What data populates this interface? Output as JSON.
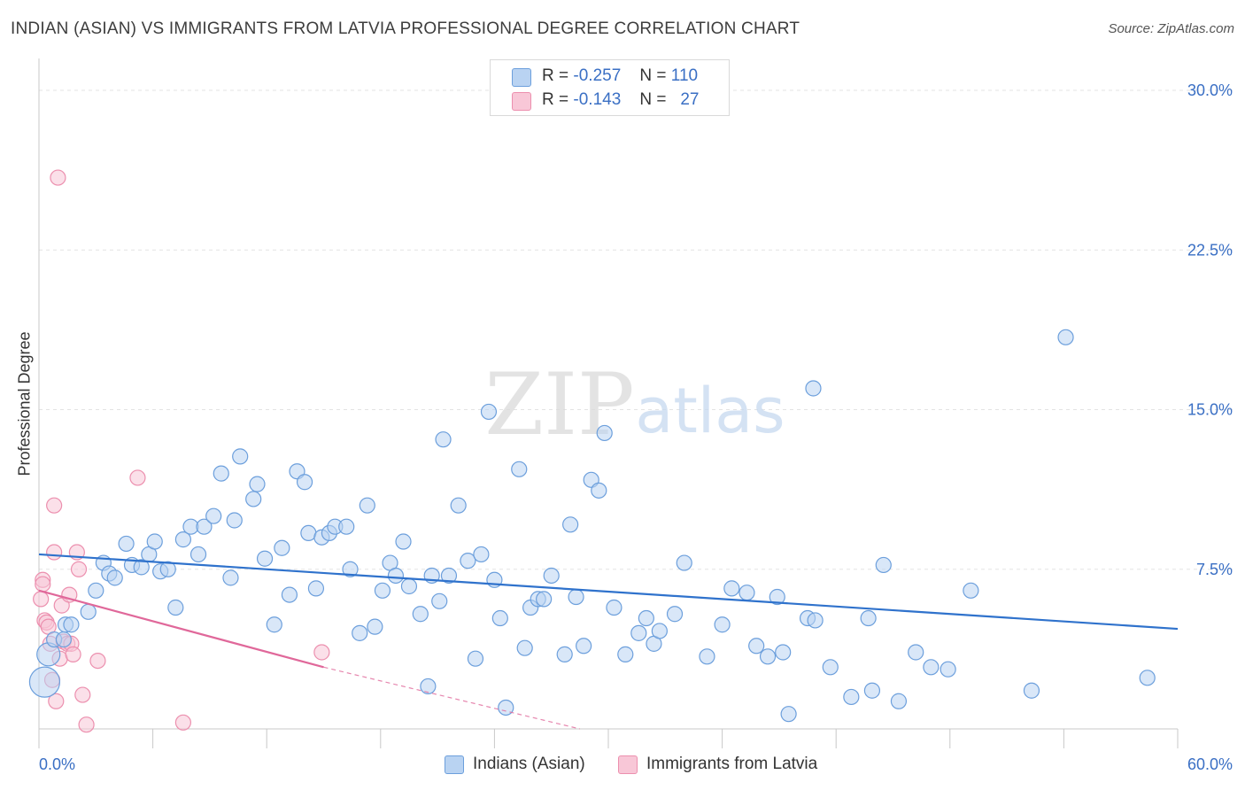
{
  "header": {
    "title": "INDIAN (ASIAN) VS IMMIGRANTS FROM LATVIA PROFESSIONAL DEGREE CORRELATION CHART",
    "source": "Source: ZipAtlas.com"
  },
  "legend": {
    "rows": [
      {
        "r_label": "R =",
        "r_value": "-0.257",
        "n_label": "N =",
        "n_value": "110"
      },
      {
        "r_label": "R =",
        "r_value": "-0.143",
        "n_label": "N =",
        "n_value": "27"
      }
    ]
  },
  "watermark": {
    "zip": "ZIP",
    "atlas": "atlas"
  },
  "colors": {
    "blue_fill": "#b9d3f2",
    "blue_stroke": "#6c9fdc",
    "blue_line": "#2f72cc",
    "pink_fill": "#f8c7d7",
    "pink_stroke": "#ec8fae",
    "pink_line": "#e0689a",
    "tick_label": "#3a6fc4",
    "grid": "#e3e3e3"
  },
  "chart_data": {
    "type": "scatter",
    "title": "INDIAN (ASIAN) VS IMMIGRANTS FROM LATVIA PROFESSIONAL DEGREE CORRELATION CHART",
    "xlabel": "",
    "ylabel": "Professional Degree",
    "xlim": [
      0,
      60
    ],
    "ylim": [
      0,
      31.5
    ],
    "x_tick_labels": [
      "0.0%",
      "60.0%"
    ],
    "y_ticks": [
      {
        "value": 7.5,
        "label": "7.5%"
      },
      {
        "value": 15.0,
        "label": "15.0%"
      },
      {
        "value": 22.5,
        "label": "22.5%"
      },
      {
        "value": 30.0,
        "label": "30.0%"
      }
    ],
    "grid": true,
    "legend_position": "top-center",
    "series": [
      {
        "name": "Indians (Asian)",
        "color": "#6c9fdc",
        "trend": {
          "x": [
            0,
            60
          ],
          "y": [
            8.2,
            4.7
          ]
        },
        "points": [
          [
            0.3,
            2.2
          ],
          [
            0.5,
            3.5
          ],
          [
            0.8,
            4.2
          ],
          [
            1.3,
            4.2
          ],
          [
            1.4,
            4.9
          ],
          [
            1.7,
            4.9
          ],
          [
            2.6,
            5.5
          ],
          [
            3.0,
            6.5
          ],
          [
            3.4,
            7.8
          ],
          [
            3.7,
            7.3
          ],
          [
            4.0,
            7.1
          ],
          [
            4.6,
            8.7
          ],
          [
            4.9,
            7.7
          ],
          [
            5.4,
            7.6
          ],
          [
            5.8,
            8.2
          ],
          [
            6.1,
            8.8
          ],
          [
            6.4,
            7.4
          ],
          [
            6.8,
            7.5
          ],
          [
            7.2,
            5.7
          ],
          [
            7.6,
            8.9
          ],
          [
            8.0,
            9.5
          ],
          [
            8.4,
            8.2
          ],
          [
            8.7,
            9.5
          ],
          [
            9.2,
            10.0
          ],
          [
            9.6,
            12.0
          ],
          [
            10.1,
            7.1
          ],
          [
            10.3,
            9.8
          ],
          [
            10.6,
            12.8
          ],
          [
            11.3,
            10.8
          ],
          [
            11.5,
            11.5
          ],
          [
            11.9,
            8.0
          ],
          [
            12.4,
            4.9
          ],
          [
            12.8,
            8.5
          ],
          [
            13.2,
            6.3
          ],
          [
            13.6,
            12.1
          ],
          [
            14.0,
            11.6
          ],
          [
            14.2,
            9.2
          ],
          [
            14.6,
            6.6
          ],
          [
            14.9,
            9.0
          ],
          [
            15.3,
            9.2
          ],
          [
            15.6,
            9.5
          ],
          [
            16.2,
            9.5
          ],
          [
            16.4,
            7.5
          ],
          [
            16.9,
            4.5
          ],
          [
            17.3,
            10.5
          ],
          [
            17.7,
            4.8
          ],
          [
            18.1,
            6.5
          ],
          [
            18.5,
            7.8
          ],
          [
            18.8,
            7.2
          ],
          [
            19.2,
            8.8
          ],
          [
            19.5,
            6.7
          ],
          [
            20.1,
            5.4
          ],
          [
            20.5,
            2.0
          ],
          [
            20.7,
            7.2
          ],
          [
            21.1,
            6.0
          ],
          [
            21.3,
            13.6
          ],
          [
            21.6,
            7.2
          ],
          [
            22.1,
            10.5
          ],
          [
            22.6,
            7.9
          ],
          [
            23.0,
            3.3
          ],
          [
            23.3,
            8.2
          ],
          [
            23.7,
            14.9
          ],
          [
            24.0,
            7.0
          ],
          [
            24.3,
            5.2
          ],
          [
            24.6,
            1.0
          ],
          [
            25.3,
            12.2
          ],
          [
            25.6,
            3.8
          ],
          [
            25.9,
            5.7
          ],
          [
            26.3,
            6.1
          ],
          [
            26.6,
            6.1
          ],
          [
            27.0,
            7.2
          ],
          [
            27.7,
            3.5
          ],
          [
            28.0,
            9.6
          ],
          [
            28.3,
            6.2
          ],
          [
            28.7,
            3.9
          ],
          [
            29.1,
            11.7
          ],
          [
            29.5,
            11.2
          ],
          [
            29.8,
            13.9
          ],
          [
            30.3,
            5.7
          ],
          [
            30.9,
            3.5
          ],
          [
            31.6,
            4.5
          ],
          [
            32.0,
            5.2
          ],
          [
            32.4,
            4.0
          ],
          [
            32.7,
            4.6
          ],
          [
            33.5,
            5.4
          ],
          [
            34.0,
            7.8
          ],
          [
            35.2,
            3.4
          ],
          [
            36.0,
            4.9
          ],
          [
            36.5,
            6.6
          ],
          [
            37.3,
            6.4
          ],
          [
            37.8,
            3.9
          ],
          [
            38.4,
            3.4
          ],
          [
            38.9,
            6.2
          ],
          [
            39.2,
            3.6
          ],
          [
            39.5,
            0.7
          ],
          [
            40.5,
            5.2
          ],
          [
            40.9,
            5.1
          ],
          [
            40.8,
            16.0
          ],
          [
            41.7,
            2.9
          ],
          [
            42.8,
            1.5
          ],
          [
            43.7,
            5.2
          ],
          [
            43.9,
            1.8
          ],
          [
            44.5,
            7.7
          ],
          [
            45.3,
            1.3
          ],
          [
            46.2,
            3.6
          ],
          [
            47.0,
            2.9
          ],
          [
            47.9,
            2.8
          ],
          [
            49.1,
            6.5
          ],
          [
            52.3,
            1.8
          ],
          [
            54.1,
            18.4
          ],
          [
            58.4,
            2.4
          ]
        ]
      },
      {
        "name": "Immigrants from Latvia",
        "color": "#ec8fae",
        "trend": {
          "x": [
            0,
            15
          ],
          "y": [
            6.5,
            2.9
          ],
          "dashed_to": {
            "x": 28.5,
            "y": 0
          }
        },
        "points": [
          [
            0.1,
            6.1
          ],
          [
            0.2,
            7.0
          ],
          [
            0.2,
            6.8
          ],
          [
            0.3,
            5.1
          ],
          [
            0.4,
            5.0
          ],
          [
            0.5,
            4.8
          ],
          [
            0.6,
            4.0
          ],
          [
            0.7,
            2.3
          ],
          [
            0.8,
            8.3
          ],
          [
            0.8,
            10.5
          ],
          [
            0.9,
            1.3
          ],
          [
            1.0,
            25.9
          ],
          [
            1.1,
            3.3
          ],
          [
            1.2,
            5.8
          ],
          [
            1.3,
            4.1
          ],
          [
            1.5,
            4.0
          ],
          [
            1.6,
            6.3
          ],
          [
            1.7,
            4.0
          ],
          [
            1.8,
            3.5
          ],
          [
            2.0,
            8.3
          ],
          [
            2.1,
            7.5
          ],
          [
            2.3,
            1.6
          ],
          [
            2.5,
            0.2
          ],
          [
            3.1,
            3.2
          ],
          [
            5.2,
            11.8
          ],
          [
            7.6,
            0.3
          ],
          [
            14.9,
            3.6
          ]
        ]
      }
    ]
  },
  "bottom_legend": [
    {
      "label": "Indians (Asian)"
    },
    {
      "label": "Immigrants from Latvia"
    }
  ]
}
